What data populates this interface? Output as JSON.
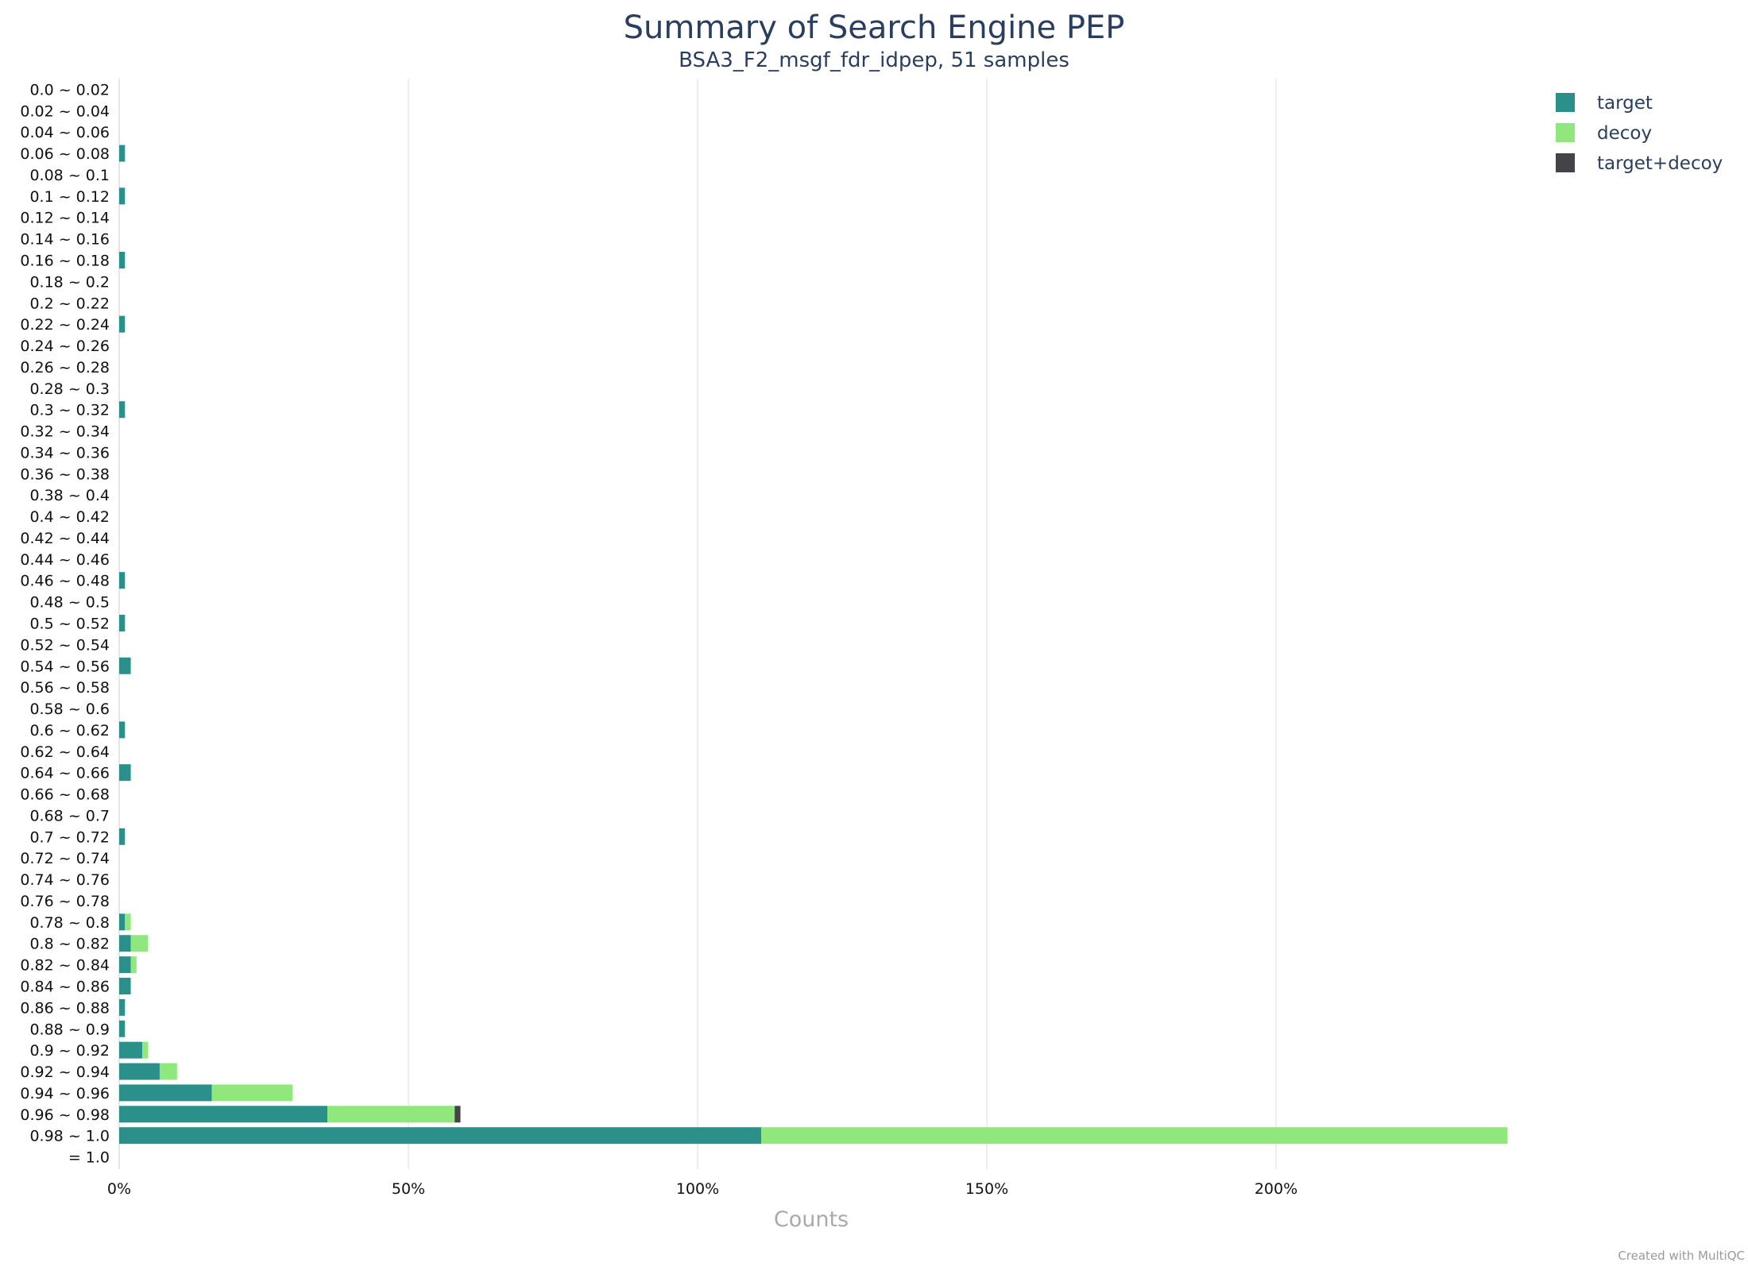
{
  "chart_data": {
    "type": "bar",
    "orientation": "horizontal",
    "stacked": true,
    "title": "Summary of Search Engine PEP",
    "subtitle": "BSA3_F2_msgf_fdr_idpep, 51 samples",
    "xlabel": "Counts",
    "ylabel": "",
    "xlim": [
      0,
      240
    ],
    "x_ticks": [
      0,
      50,
      100,
      150,
      200
    ],
    "x_tick_labels": [
      "0%",
      "50%",
      "100%",
      "150%",
      "200%"
    ],
    "grid": "vertical",
    "legend_position": "top-right",
    "categories": [
      "0.0 ~ 0.02",
      "0.02 ~ 0.04",
      "0.04 ~ 0.06",
      "0.06 ~ 0.08",
      "0.08 ~ 0.1",
      "0.1 ~ 0.12",
      "0.12 ~ 0.14",
      "0.14 ~ 0.16",
      "0.16 ~ 0.18",
      "0.18 ~ 0.2",
      "0.2 ~ 0.22",
      "0.22 ~ 0.24",
      "0.24 ~ 0.26",
      "0.26 ~ 0.28",
      "0.28 ~ 0.3",
      "0.3 ~ 0.32",
      "0.32 ~ 0.34",
      "0.34 ~ 0.36",
      "0.36 ~ 0.38",
      "0.38 ~ 0.4",
      "0.4 ~ 0.42",
      "0.42 ~ 0.44",
      "0.44 ~ 0.46",
      "0.46 ~ 0.48",
      "0.48 ~ 0.5",
      "0.5 ~ 0.52",
      "0.52 ~ 0.54",
      "0.54 ~ 0.56",
      "0.56 ~ 0.58",
      "0.58 ~ 0.6",
      "0.6 ~ 0.62",
      "0.62 ~ 0.64",
      "0.64 ~ 0.66",
      "0.66 ~ 0.68",
      "0.68 ~ 0.7",
      "0.7 ~ 0.72",
      "0.72 ~ 0.74",
      "0.74 ~ 0.76",
      "0.76 ~ 0.78",
      "0.78 ~ 0.8",
      "0.8 ~ 0.82",
      "0.82 ~ 0.84",
      "0.84 ~ 0.86",
      "0.86 ~ 0.88",
      "0.88 ~ 0.9",
      "0.9 ~ 0.92",
      "0.92 ~ 0.94",
      "0.94 ~ 0.96",
      "0.96 ~ 0.98",
      "0.98 ~ 1.0",
      "= 1.0"
    ],
    "series": [
      {
        "name": "target",
        "color": "#2b9089",
        "values": [
          0,
          0,
          0,
          1,
          0,
          1,
          0,
          0,
          1,
          0,
          0,
          1,
          0,
          0,
          0,
          1,
          0,
          0,
          0,
          0,
          0,
          0,
          0,
          1,
          0,
          1,
          0,
          2,
          0,
          0,
          1,
          0,
          2,
          0,
          0,
          1,
          0,
          0,
          0,
          1,
          2,
          2,
          2,
          1,
          1,
          4,
          7,
          16,
          36,
          111,
          0
        ]
      },
      {
        "name": "decoy",
        "color": "#90e87c",
        "values": [
          0,
          0,
          0,
          0,
          0,
          0,
          0,
          0,
          0,
          0,
          0,
          0,
          0,
          0,
          0,
          0,
          0,
          0,
          0,
          0,
          0,
          0,
          0,
          0,
          0,
          0,
          0,
          0,
          0,
          0,
          0,
          0,
          0,
          0,
          0,
          0,
          0,
          0,
          0,
          1,
          3,
          1,
          0,
          0,
          0,
          1,
          3,
          14,
          22,
          129,
          0
        ]
      },
      {
        "name": "target+decoy",
        "color": "#434348",
        "values": [
          0,
          0,
          0,
          0,
          0,
          0,
          0,
          0,
          0,
          0,
          0,
          0,
          0,
          0,
          0,
          0,
          0,
          0,
          0,
          0,
          0,
          0,
          0,
          0,
          0,
          0,
          0,
          0,
          0,
          0,
          0,
          0,
          0,
          0,
          0,
          0,
          0,
          0,
          0,
          0,
          0,
          0,
          0,
          0,
          0,
          0,
          0,
          0,
          1,
          0,
          0
        ]
      }
    ]
  },
  "credit": "Created with MultiQC"
}
